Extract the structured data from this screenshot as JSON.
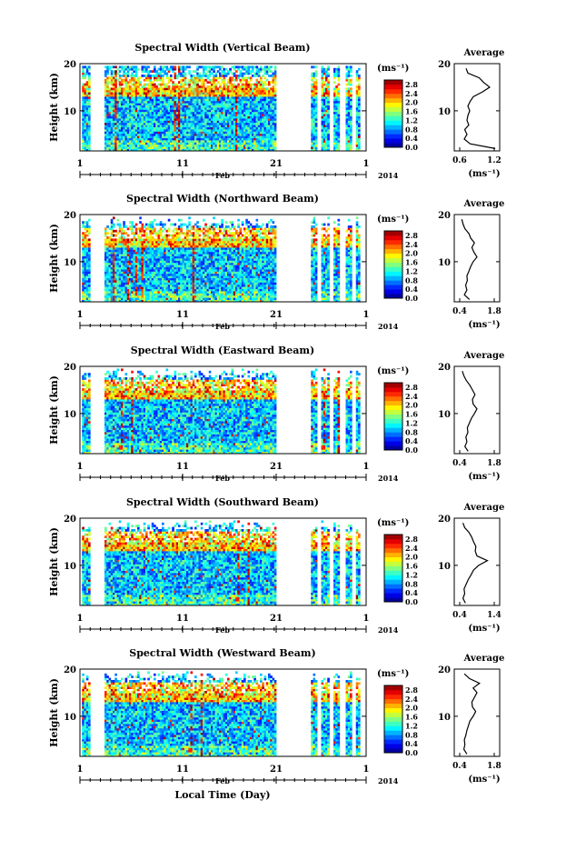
{
  "figure": {
    "bottom_xlabel": "Local Time (Day)"
  },
  "chart_data": [
    {
      "type": "heatmap",
      "title": "Spectral Width (Vertical Beam)",
      "ylabel": "Height (km)",
      "ylim": [
        1.5,
        20
      ],
      "yticks": [
        10,
        20
      ],
      "xticks": [
        "1",
        "11",
        "21",
        "1"
      ],
      "xaxis_month": "Feb",
      "xaxis_year": "2014",
      "colorbar": {
        "unit": "(ms⁻¹)",
        "ticks": [
          "0.0",
          "0.4",
          "0.8",
          "1.2",
          "1.6",
          "2.0",
          "2.4",
          "2.8"
        ],
        "range": [
          0,
          3.0
        ]
      },
      "average": {
        "title": "Average",
        "xlabel": "(ms⁻¹)",
        "xticks": [
          "0.6",
          "1.2"
        ],
        "xlim": [
          0.4,
          1.4
        ],
        "profile": {
          "height": [
            2,
            3,
            4,
            5,
            6,
            7,
            8,
            9,
            10,
            11,
            12,
            13,
            14,
            15,
            16,
            17,
            18,
            19
          ],
          "value": [
            1.3,
            0.75,
            0.62,
            0.68,
            0.63,
            0.72,
            0.68,
            0.7,
            0.74,
            0.7,
            0.75,
            0.82,
            1.02,
            1.18,
            1.05,
            0.95,
            0.7,
            0.66
          ]
        }
      }
    },
    {
      "type": "heatmap",
      "title": "Spectral Width (Northward Beam)",
      "ylabel": "Height (km)",
      "ylim": [
        1.5,
        20
      ],
      "yticks": [
        10,
        20
      ],
      "xticks": [
        "1",
        "11",
        "21",
        "1"
      ],
      "xaxis_month": "Feb",
      "xaxis_year": "2014",
      "colorbar": {
        "unit": "(ms⁻¹)",
        "ticks": [
          "0.0",
          "0.4",
          "0.8",
          "1.2",
          "1.6",
          "2.0",
          "2.4",
          "2.8"
        ],
        "range": [
          0,
          3.0
        ]
      },
      "average": {
        "title": "Average",
        "xlabel": "(ms⁻¹)",
        "xticks": [
          "0.4",
          "1.8"
        ],
        "xlim": [
          0.2,
          2.0
        ],
        "profile": {
          "height": [
            2,
            3,
            4,
            5,
            6,
            7,
            8,
            9,
            10,
            11,
            12,
            13,
            14,
            15,
            16,
            17,
            18,
            19
          ],
          "value": [
            0.8,
            0.6,
            0.7,
            0.65,
            0.72,
            0.7,
            0.78,
            0.85,
            0.95,
            1.1,
            0.98,
            0.9,
            1.0,
            0.85,
            0.78,
            0.62,
            0.55,
            0.5
          ]
        }
      }
    },
    {
      "type": "heatmap",
      "title": "Spectral Width (Eastward Beam)",
      "ylabel": "Height (km)",
      "ylim": [
        1.5,
        20
      ],
      "yticks": [
        10,
        20
      ],
      "xticks": [
        "1",
        "11",
        "21",
        "1"
      ],
      "xaxis_month": "Feb",
      "xaxis_year": "2014",
      "colorbar": {
        "unit": "(ms⁻¹)",
        "ticks": [
          "0.0",
          "0.4",
          "0.8",
          "1.2",
          "1.6",
          "2.0",
          "2.4",
          "2.8"
        ],
        "range": [
          0,
          3.0
        ]
      },
      "average": {
        "title": "Average",
        "xlabel": "(ms⁻¹)",
        "xticks": [
          "0.4",
          "1.8"
        ],
        "xlim": [
          0.2,
          2.0
        ],
        "profile": {
          "height": [
            2,
            3,
            4,
            5,
            6,
            7,
            8,
            9,
            10,
            11,
            12,
            13,
            14,
            15,
            16,
            17,
            18,
            19
          ],
          "value": [
            0.75,
            0.62,
            0.7,
            0.66,
            0.74,
            0.72,
            0.8,
            0.88,
            1.0,
            1.1,
            0.95,
            0.92,
            1.02,
            0.92,
            0.82,
            0.68,
            0.58,
            0.52
          ]
        }
      }
    },
    {
      "type": "heatmap",
      "title": "Spectral Width (Southward Beam)",
      "ylabel": "Height (km)",
      "ylim": [
        1.5,
        20
      ],
      "yticks": [
        10,
        20
      ],
      "xticks": [
        "1",
        "11",
        "21",
        "1"
      ],
      "xaxis_month": "Feb",
      "xaxis_year": "2014",
      "colorbar": {
        "unit": "(ms⁻¹)",
        "ticks": [
          "0.0",
          "0.4",
          "0.8",
          "1.2",
          "1.6",
          "2.0",
          "2.4",
          "2.8"
        ],
        "range": [
          0,
          3.0
        ]
      },
      "average": {
        "title": "Average",
        "xlabel": "(ms⁻¹)",
        "xticks": [
          "0.4",
          "1.4"
        ],
        "xlim": [
          0.3,
          1.6
        ],
        "profile": {
          "height": [
            2,
            3,
            4,
            5,
            6,
            7,
            8,
            9,
            10,
            11,
            12,
            13,
            14,
            15,
            16,
            17,
            18,
            19
          ],
          "value": [
            0.62,
            0.55,
            0.6,
            0.58,
            0.64,
            0.7,
            0.78,
            0.85,
            1.0,
            1.25,
            0.95,
            0.9,
            0.92,
            0.85,
            0.8,
            0.72,
            0.6,
            0.55
          ]
        }
      }
    },
    {
      "type": "heatmap",
      "title": "Spectral Width (Westward Beam)",
      "ylabel": "Height (km)",
      "ylim": [
        1.5,
        20
      ],
      "yticks": [
        10,
        20
      ],
      "xticks": [
        "1",
        "11",
        "21",
        "1"
      ],
      "xaxis_month": "Feb",
      "xaxis_year": "2014",
      "colorbar": {
        "unit": "(ms⁻¹)",
        "ticks": [
          "0.0",
          "0.4",
          "0.8",
          "1.2",
          "1.6",
          "2.0",
          "2.4",
          "2.8"
        ],
        "range": [
          0,
          3.0
        ]
      },
      "average": {
        "title": "Average",
        "xlabel": "(ms⁻¹)",
        "xticks": [
          "0.4",
          "1.8"
        ],
        "xlim": [
          0.2,
          2.0
        ],
        "profile": {
          "height": [
            2,
            3,
            4,
            5,
            6,
            7,
            8,
            9,
            10,
            11,
            12,
            13,
            14,
            15,
            16,
            17,
            18,
            19
          ],
          "value": [
            0.7,
            0.58,
            0.62,
            0.6,
            0.66,
            0.7,
            0.76,
            0.82,
            0.95,
            1.05,
            0.92,
            0.9,
            1.0,
            1.1,
            0.95,
            1.2,
            0.8,
            0.6
          ]
        }
      }
    }
  ]
}
